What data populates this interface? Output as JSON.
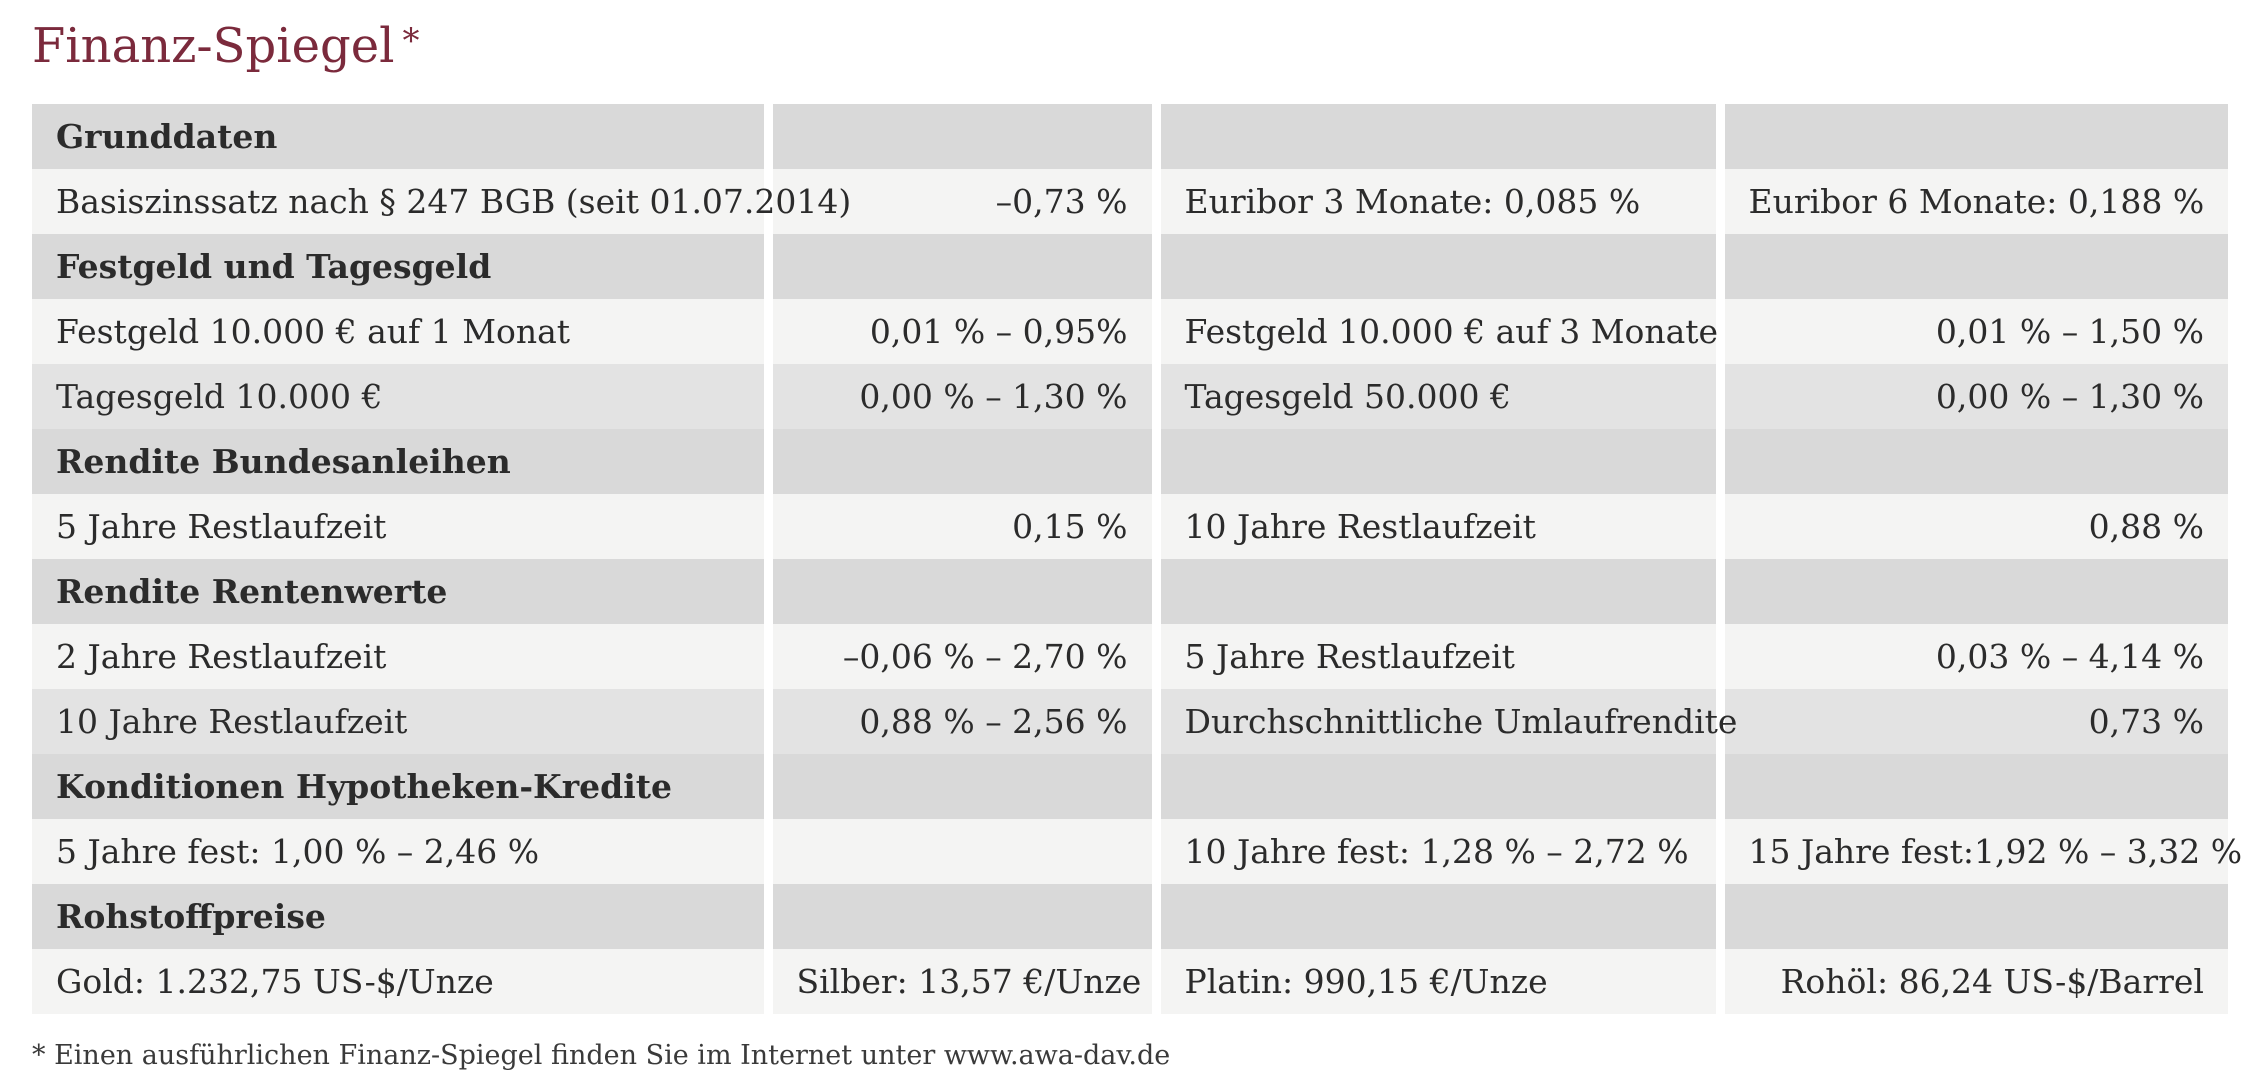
{
  "title": "Finanz-Spiegel",
  "title_marker": "*",
  "footnote": "* Einen ausführlichen Finanz-Spiegel finden Sie im Internet unter www.awa-dav.de",
  "colors": {
    "title": "#7b2a3c",
    "section_bg": "#d9d9d9",
    "row_bg_light": "#f4f4f3",
    "row_bg_alt": "#e3e3e3"
  },
  "sections": [
    {
      "heading": "Grunddaten",
      "rows": [
        [
          "Basiszinssatz nach § 247 BGB (seit 01.07.2014)",
          "–0,73 %",
          "Euribor 3 Monate: 0,085 %",
          "Euribor 6 Monate: 0,188 %"
        ]
      ]
    },
    {
      "heading": "Festgeld und Tagesgeld",
      "rows": [
        [
          "Festgeld 10.000 € auf 1 Monat",
          "0,01 % – 0,95%",
          "Festgeld 10.000 € auf 3 Monate",
          "0,01 % – 1,50 %"
        ],
        [
          "Tagesgeld 10.000 €",
          "0,00 % – 1,30 %",
          "Tagesgeld 50.000 €",
          "0,00 % – 1,30 %"
        ]
      ]
    },
    {
      "heading": "Rendite Bundesanleihen",
      "rows": [
        [
          "5 Jahre Restlaufzeit",
          "0,15 %",
          "10 Jahre Restlaufzeit",
          "0,88 %"
        ]
      ]
    },
    {
      "heading": "Rendite Rentenwerte",
      "rows": [
        [
          "2 Jahre Restlaufzeit",
          "–0,06 % – 2,70 %",
          "5 Jahre Restlaufzeit",
          "0,03 % – 4,14 %"
        ],
        [
          "10 Jahre Restlaufzeit",
          "0,88 % – 2,56 %",
          "Durchschnittliche Umlaufrendite",
          "0,73 %"
        ]
      ]
    },
    {
      "heading": "Konditionen Hypotheken-Kredite",
      "rows": [
        [
          "5 Jahre fest: 1,00 % – 2,46 %",
          "",
          "10 Jahre fest: 1,28 % – 2,72 %",
          "15 Jahre fest:1,92 % – 3,32 %"
        ]
      ]
    },
    {
      "heading": "Rohstoffpreise",
      "rows": [
        [
          "Gold: 1.232,75 US-$/Unze",
          "Silber: 13,57 €/Unze",
          "Platin: 990,15 €/Unze",
          "Rohöl: 86,24 US-$/Barrel"
        ]
      ]
    }
  ]
}
